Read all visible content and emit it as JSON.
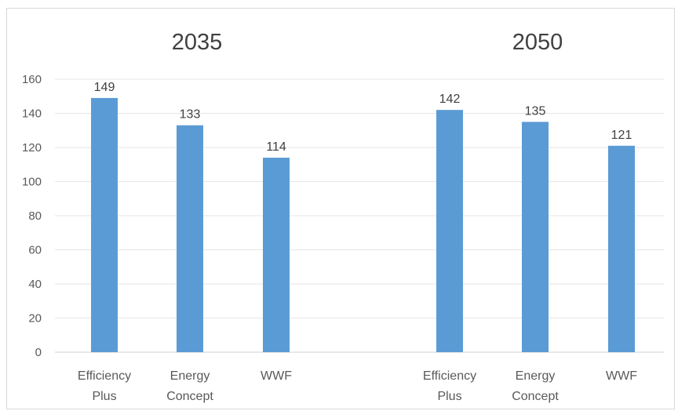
{
  "chart_data": {
    "type": "bar",
    "panels": [
      "2035",
      "2050"
    ],
    "categories": [
      "Efficiency Plus",
      "Energy Concept",
      "WWF"
    ],
    "category_lines": [
      [
        "Efficiency",
        "Plus"
      ],
      [
        "Energy",
        "Concept"
      ],
      [
        "WWF"
      ]
    ],
    "series": [
      {
        "name": "2035",
        "values": [
          149,
          133,
          114
        ]
      },
      {
        "name": "2050",
        "values": [
          142,
          135,
          121
        ]
      }
    ],
    "ylim": [
      0,
      160
    ],
    "yticks": [
      0,
      20,
      40,
      60,
      80,
      100,
      120,
      140,
      160
    ],
    "grid": true,
    "bar_color": "#5b9bd5",
    "xlabel": "",
    "ylabel": ""
  }
}
